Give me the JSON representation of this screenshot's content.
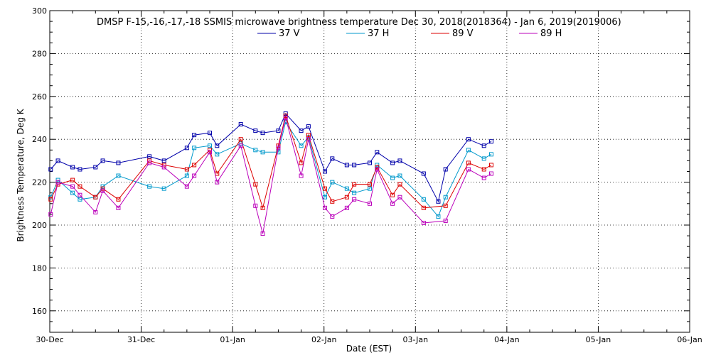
{
  "chart_data": {
    "type": "line",
    "title": "DMSP F-15,-16,-17,-18 SSMIS microwave brightness temperature Dec 30, 2018(2018364) - Jan  6, 2019(2019006)",
    "xlabel": "Date (EST)",
    "ylabel": "Brightness Temperature, Deg K",
    "xlim": [
      0,
      7
    ],
    "ylim": [
      150,
      300
    ],
    "x_ticks": [
      0,
      1,
      2,
      3,
      4,
      5,
      6,
      7
    ],
    "x_tick_labels": [
      "30-Dec",
      "31-Dec",
      "01-Jan",
      "02-Jan",
      "03-Jan",
      "04-Jan",
      "05-Jan",
      "06-Jan"
    ],
    "y_ticks": [
      160,
      180,
      200,
      220,
      240,
      260,
      280,
      300
    ],
    "y_tick_labels": [
      "160",
      "180",
      "200",
      "220",
      "240",
      "260",
      "280",
      "300"
    ],
    "grid": "dotted",
    "legend": "top-center",
    "series": [
      {
        "name": "37 V",
        "color": "#0000aa",
        "points": [
          [
            0.01,
            226
          ],
          [
            0.09,
            230
          ],
          [
            0.25,
            227
          ],
          [
            0.33,
            226
          ],
          [
            0.5,
            227
          ],
          [
            0.58,
            230
          ],
          [
            0.75,
            229
          ],
          [
            1.09,
            232
          ],
          [
            1.25,
            230
          ],
          [
            1.5,
            236
          ],
          [
            1.58,
            242
          ],
          [
            1.75,
            243
          ],
          [
            1.83,
            237
          ],
          [
            2.09,
            247
          ],
          [
            2.25,
            244
          ],
          [
            2.33,
            243
          ],
          [
            2.5,
            244
          ],
          [
            2.58,
            252
          ],
          [
            2.75,
            244
          ],
          [
            2.83,
            246
          ],
          [
            3.01,
            225
          ],
          [
            3.09,
            231
          ],
          [
            3.25,
            228
          ],
          [
            3.33,
            228
          ],
          [
            3.5,
            229
          ],
          [
            3.58,
            234
          ],
          [
            3.75,
            229
          ],
          [
            3.83,
            230
          ],
          [
            4.09,
            224
          ],
          [
            4.25,
            211
          ],
          [
            4.33,
            226
          ],
          [
            4.58,
            240
          ],
          [
            4.75,
            237
          ],
          [
            4.83,
            239
          ]
        ]
      },
      {
        "name": "37 H",
        "color": "#0099cc",
        "points": [
          [
            0.01,
            213
          ],
          [
            0.09,
            221
          ],
          [
            0.25,
            215
          ],
          [
            0.33,
            212
          ],
          [
            0.5,
            213
          ],
          [
            0.58,
            218
          ],
          [
            0.75,
            223
          ],
          [
            1.09,
            218
          ],
          [
            1.25,
            217
          ],
          [
            1.5,
            223
          ],
          [
            1.58,
            236
          ],
          [
            1.75,
            237
          ],
          [
            1.83,
            233
          ],
          [
            2.09,
            238
          ],
          [
            2.25,
            235
          ],
          [
            2.33,
            234
          ],
          [
            2.5,
            234
          ],
          [
            2.58,
            248
          ],
          [
            2.75,
            237
          ],
          [
            2.83,
            241
          ],
          [
            3.01,
            213
          ],
          [
            3.09,
            220
          ],
          [
            3.25,
            217
          ],
          [
            3.33,
            215
          ],
          [
            3.5,
            217
          ],
          [
            3.58,
            228
          ],
          [
            3.75,
            222
          ],
          [
            3.83,
            223
          ],
          [
            4.09,
            212
          ],
          [
            4.25,
            204
          ],
          [
            4.33,
            213
          ],
          [
            4.58,
            235
          ],
          [
            4.75,
            231
          ],
          [
            4.83,
            233
          ]
        ]
      },
      {
        "name": "89 V",
        "color": "#dd0000",
        "points": [
          [
            0.01,
            212
          ],
          [
            0.09,
            219
          ],
          [
            0.25,
            221
          ],
          [
            0.33,
            218
          ],
          [
            0.5,
            213
          ],
          [
            0.58,
            217
          ],
          [
            0.75,
            212
          ],
          [
            1.09,
            230
          ],
          [
            1.25,
            228
          ],
          [
            1.5,
            226
          ],
          [
            1.58,
            228
          ],
          [
            1.75,
            235
          ],
          [
            1.83,
            224
          ],
          [
            2.09,
            240
          ],
          [
            2.25,
            219
          ],
          [
            2.33,
            208
          ],
          [
            2.5,
            237
          ],
          [
            2.58,
            251
          ],
          [
            2.75,
            229
          ],
          [
            2.83,
            242
          ],
          [
            3.01,
            217
          ],
          [
            3.09,
            211
          ],
          [
            3.25,
            213
          ],
          [
            3.33,
            219
          ],
          [
            3.5,
            219
          ],
          [
            3.58,
            227
          ],
          [
            3.75,
            214
          ],
          [
            3.83,
            219
          ],
          [
            4.09,
            208
          ],
          [
            4.33,
            209
          ],
          [
            4.58,
            229
          ],
          [
            4.75,
            226
          ],
          [
            4.83,
            228
          ]
        ]
      },
      {
        "name": "89 H",
        "color": "#bb00bb",
        "points": [
          [
            0.01,
            205
          ],
          [
            0.09,
            220
          ],
          [
            0.25,
            218
          ],
          [
            0.33,
            214
          ],
          [
            0.5,
            206
          ],
          [
            0.58,
            216
          ],
          [
            0.75,
            208
          ],
          [
            1.09,
            229
          ],
          [
            1.25,
            227
          ],
          [
            1.5,
            218
          ],
          [
            1.58,
            223
          ],
          [
            1.75,
            234
          ],
          [
            1.83,
            220
          ],
          [
            2.09,
            237
          ],
          [
            2.25,
            209
          ],
          [
            2.33,
            196
          ],
          [
            2.5,
            236
          ],
          [
            2.58,
            250
          ],
          [
            2.75,
            223
          ],
          [
            2.83,
            240
          ],
          [
            3.01,
            208
          ],
          [
            3.09,
            204
          ],
          [
            3.25,
            208
          ],
          [
            3.33,
            212
          ],
          [
            3.5,
            210
          ],
          [
            3.58,
            226
          ],
          [
            3.75,
            210
          ],
          [
            3.83,
            213
          ],
          [
            4.09,
            201
          ],
          [
            4.33,
            202
          ],
          [
            4.58,
            226
          ],
          [
            4.75,
            222
          ],
          [
            4.83,
            224
          ]
        ]
      }
    ]
  }
}
